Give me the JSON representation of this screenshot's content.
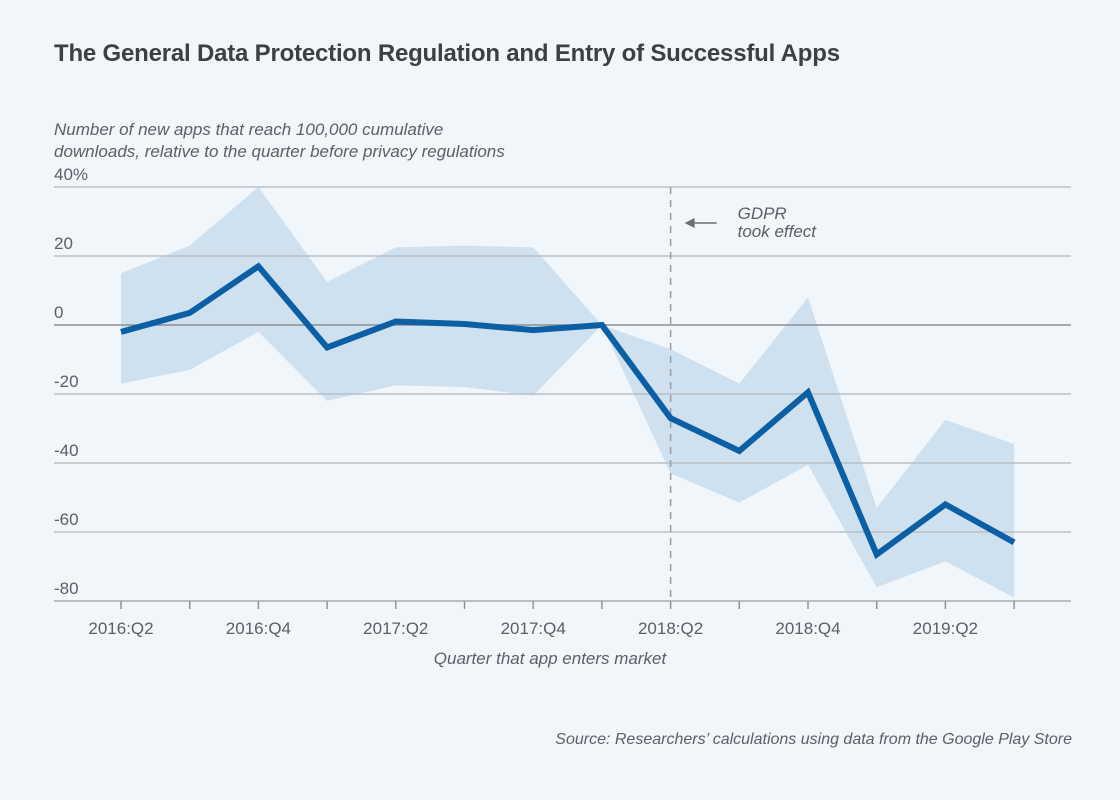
{
  "chart_data": {
    "type": "line",
    "title": "The General Data Protection Regulation and Entry of Successful Apps",
    "ylabel_lines": [
      "Number of new apps that reach 100,000 cumulative",
      "downloads, relative to the quarter before privacy regulations"
    ],
    "xlabel": "Quarter that app enters market",
    "source": "Source: Researchers’ calculations using data from the Google Play Store",
    "ylim": [
      -80,
      40
    ],
    "yticks": [
      40,
      20,
      0,
      -20,
      -40,
      -60,
      -80
    ],
    "ytick_labels": [
      "40%",
      "20",
      "0",
      "-20",
      "-40",
      "-60",
      "-80"
    ],
    "grid": true,
    "x": [
      "2016:Q2",
      "2016:Q3",
      "2016:Q4",
      "2017:Q1",
      "2017:Q2",
      "2017:Q3",
      "2017:Q4",
      "2018:Q1",
      "2018:Q2",
      "2018:Q3",
      "2018:Q4",
      "2019:Q1",
      "2019:Q2",
      "2019:Q3"
    ],
    "xtick_labels_shown": [
      "2016:Q2",
      "",
      "2016:Q4",
      "",
      "2017:Q2",
      "",
      "2017:Q4",
      "",
      "2018:Q2",
      "",
      "2018:Q4",
      "",
      "2019:Q2",
      ""
    ],
    "series": [
      {
        "name": "Estimate",
        "color": "#0b5fa5",
        "values": [
          -2,
          3.5,
          17,
          -6.5,
          1,
          0.3,
          -1.5,
          0,
          -27,
          -36.5,
          -19.5,
          -66.5,
          -52,
          -63
        ]
      },
      {
        "name": "Confidence interval upper",
        "color": "#cfe0ee",
        "values": [
          15,
          23,
          40,
          12.5,
          22.5,
          23,
          22.5,
          0,
          -7,
          -17,
          8,
          -53,
          -27.5,
          -34.5
        ]
      },
      {
        "name": "Confidence interval lower",
        "color": "#cfe0ee",
        "values": [
          -17,
          -13,
          -2,
          -22,
          -17.5,
          -18,
          -20.5,
          0,
          -43,
          -51.5,
          -40.5,
          -76,
          -68.5,
          -79
        ]
      }
    ],
    "annotation": {
      "x": "2018:Q2",
      "style": "dashed-vertical-line",
      "lines": [
        "GDPR",
        "took effect"
      ],
      "arrow": "left"
    }
  }
}
